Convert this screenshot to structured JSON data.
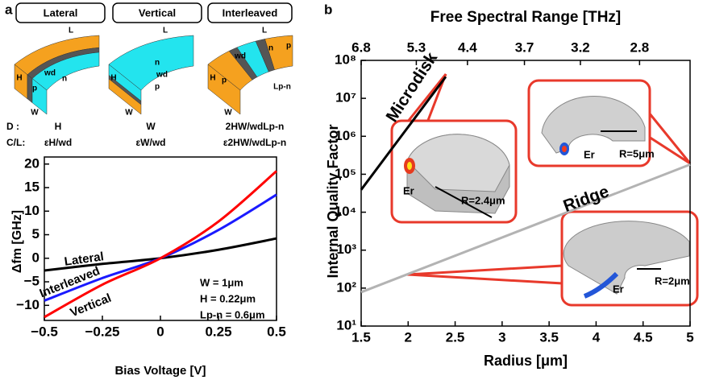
{
  "diagram": {
    "types": [
      "Lateral",
      "Vertical",
      "Interleaved"
    ],
    "row_labels": [
      "D :",
      "C/L:"
    ],
    "D": [
      "H",
      "W",
      "2HW/wdLp-n"
    ],
    "CL": [
      "εH/wd",
      "εW/wd",
      "ε2HW/wdLp-n"
    ],
    "dims": [
      [
        "L",
        "H",
        "W",
        "p",
        "n",
        "wd"
      ],
      [
        "L",
        "H",
        "W",
        "n",
        "wd",
        "p"
      ],
      [
        "L",
        "H",
        "W",
        "p",
        "n",
        "p",
        "wd",
        "Lp-n"
      ]
    ]
  },
  "chart_data": [
    {
      "type": "line",
      "panel": "a",
      "x_label": "Bias Voltage [V]",
      "y_label": "Δfm [GHz]",
      "x": [
        -0.5,
        -0.25,
        0,
        0.25,
        0.5
      ],
      "series": [
        {
          "name": "Lateral",
          "color": "#000000",
          "values": [
            -2.6,
            -1.2,
            0,
            1.8,
            4.2
          ]
        },
        {
          "name": "Interleaved",
          "color": "#1a1aff",
          "values": [
            -9.0,
            -4.2,
            0,
            6.0,
            13.5
          ]
        },
        {
          "name": "Vertical",
          "color": "#ff0000",
          "values": [
            -12.5,
            -5.6,
            0,
            7.8,
            18.5
          ]
        }
      ],
      "xlim": [
        -0.5,
        0.5
      ],
      "xticks": [
        {
          "value": -0.5,
          "label": "−0.5"
        },
        {
          "value": -0.25,
          "label": "−0.25"
        },
        0,
        0.25,
        0.5
      ],
      "ylim": [
        -13.2,
        21.5
      ],
      "yticks": [
        {
          "value": -10,
          "label": "−10"
        },
        {
          "value": -5,
          "label": "−5"
        },
        0,
        5,
        10,
        15,
        20
      ],
      "annotations": [
        "W = 1μm",
        "H = 0.22μm",
        "Lp-n = 0.6μm"
      ]
    },
    {
      "type": "line",
      "panel": "b",
      "x_label": "Radius [μm]",
      "x2_label": "Free Spectral Range [THz]",
      "y_label": "Internal Quality Factor",
      "series": [
        {
          "name": "Microdisk",
          "color": "#000000",
          "x": [
            1.5,
            2.4
          ],
          "values": [
            39000,
            37000000
          ]
        },
        {
          "name": "Ridge",
          "color": "#b3b3b3",
          "x": [
            1.5,
            5
          ],
          "values": [
            78,
            180000
          ]
        }
      ],
      "xlim": [
        1.5,
        5
      ],
      "xticks": [
        1.5,
        2,
        2.5,
        3,
        3.5,
        4,
        4.5,
        5
      ],
      "x2lim": [
        6.8,
        2.53
      ],
      "x2scale": "reciprocal",
      "x2ticks": [
        6.8,
        5.3,
        4.4,
        3.7,
        3.2,
        2.8
      ],
      "ylim": [
        10,
        100000000
      ],
      "yscale": "log",
      "yticks": [
        {
          "value": 10,
          "label": "10¹"
        },
        {
          "value": 100,
          "label": "10²"
        },
        {
          "value": 1000,
          "label": "10³"
        },
        {
          "value": 10000,
          "label": "10⁴"
        },
        {
          "value": 100000,
          "label": "10⁵"
        },
        {
          "value": 1000000,
          "label": "10⁶"
        },
        {
          "value": 10000000,
          "label": "10⁷"
        },
        {
          "value": 100000000,
          "label": "10⁸"
        }
      ],
      "annotations": [
        "Er",
        "R=2.4μm",
        "Er",
        "R=5μm",
        "Er",
        "R=2μm"
      ]
    }
  ]
}
